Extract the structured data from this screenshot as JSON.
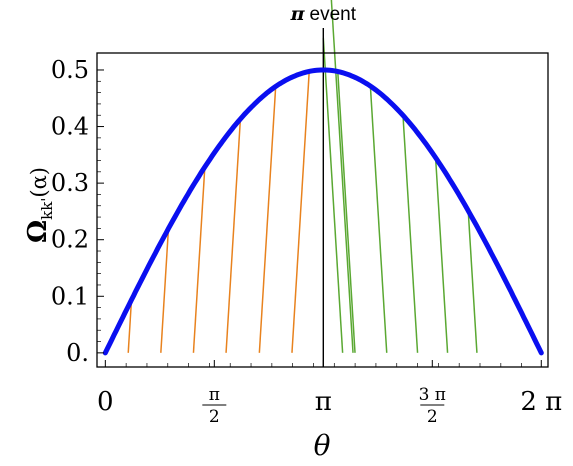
{
  "chart_data": {
    "type": "line",
    "annotation": {
      "symbol": "π",
      "text": "event"
    },
    "ylabel": {
      "omega": "Ω",
      "sub": "kk'",
      "arg": "(α)"
    },
    "xlabel": "θ",
    "x_ticks": [
      {
        "value": 0,
        "label": "0"
      },
      {
        "value": 1.5708,
        "num": "π",
        "den": "2"
      },
      {
        "value": 3.1416,
        "label": "π"
      },
      {
        "value": 4.7124,
        "num": "3 π",
        "den": "2"
      },
      {
        "value": 6.2832,
        "label": "2 π"
      }
    ],
    "y_ticks": [
      {
        "value": 0,
        "label": "0."
      },
      {
        "value": 0.1,
        "label": "0.1"
      },
      {
        "value": 0.2,
        "label": "0.2"
      },
      {
        "value": 0.3,
        "label": "0.3"
      },
      {
        "value": 0.4,
        "label": "0.4"
      },
      {
        "value": 0.5,
        "label": "0.5"
      }
    ],
    "xlim": [
      -0.12,
      6.38
    ],
    "ylim": [
      -0.025,
      0.53
    ],
    "series": [
      {
        "x": [
          0.0,
          0.4,
          0.8,
          1.2,
          1.6,
          2.0,
          2.4,
          2.8,
          3.14,
          3.4,
          3.6,
          3.8,
          4.2,
          4.6,
          5.0,
          5.4,
          5.8,
          6.1,
          6.28
        ],
        "y": [
          0.0,
          0.1,
          0.19,
          0.27,
          0.34,
          0.4,
          0.445,
          0.482,
          0.495,
          0.5,
          0.498,
          0.485,
          0.44,
          0.37,
          0.28,
          0.18,
          0.085,
          0.03,
          0.0
        ]
      }
    ],
    "event_x": 3.1416,
    "hatch": {
      "left_bottoms": [
        0.33,
        0.8,
        1.27,
        1.74,
        2.22,
        2.69
      ],
      "right_tops": [
        3.35,
        3.82,
        4.29,
        4.76,
        5.23
      ]
    },
    "colors": {
      "curve": "#0a0ff0",
      "hatch_left": "#e8821e",
      "hatch_right": "#5aa832",
      "event_line": "#000000",
      "axes": "#000000"
    }
  }
}
